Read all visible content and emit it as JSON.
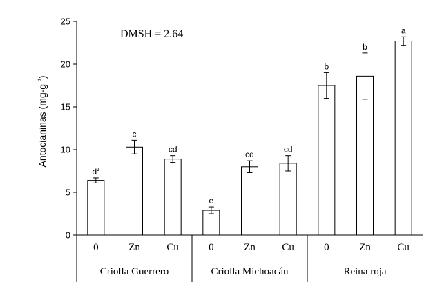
{
  "chart_data": {
    "type": "bar",
    "title": "",
    "ylabel": "Antocianinas (mg·g⁻¹)",
    "xlabel": "",
    "ylim": [
      0,
      25
    ],
    "yticks": [
      0,
      5,
      10,
      15,
      20,
      25
    ],
    "grid": false,
    "annotation": "DMSH = 2.64",
    "groups": [
      {
        "name": "Criolla Guerrero",
        "bars": [
          {
            "category": "0",
            "value": 6.4,
            "error": 0.3,
            "letter": "dz"
          },
          {
            "category": "Zn",
            "value": 10.3,
            "error": 0.8,
            "letter": "c"
          },
          {
            "category": "Cu",
            "value": 8.9,
            "error": 0.4,
            "letter": "cd"
          }
        ]
      },
      {
        "name": "Criolla Michoacán",
        "bars": [
          {
            "category": "0",
            "value": 2.9,
            "error": 0.4,
            "letter": "e"
          },
          {
            "category": "Zn",
            "value": 8.0,
            "error": 0.7,
            "letter": "cd"
          },
          {
            "category": "Cu",
            "value": 8.4,
            "error": 0.9,
            "letter": "cd"
          }
        ]
      },
      {
        "name": "Reina roja",
        "bars": [
          {
            "category": "0",
            "value": 17.5,
            "error": 1.5,
            "letter": "b"
          },
          {
            "category": "Zn",
            "value": 18.6,
            "error": 2.7,
            "letter": "b"
          },
          {
            "category": "Cu",
            "value": 22.7,
            "error": 0.5,
            "letter": "a"
          }
        ]
      }
    ]
  }
}
